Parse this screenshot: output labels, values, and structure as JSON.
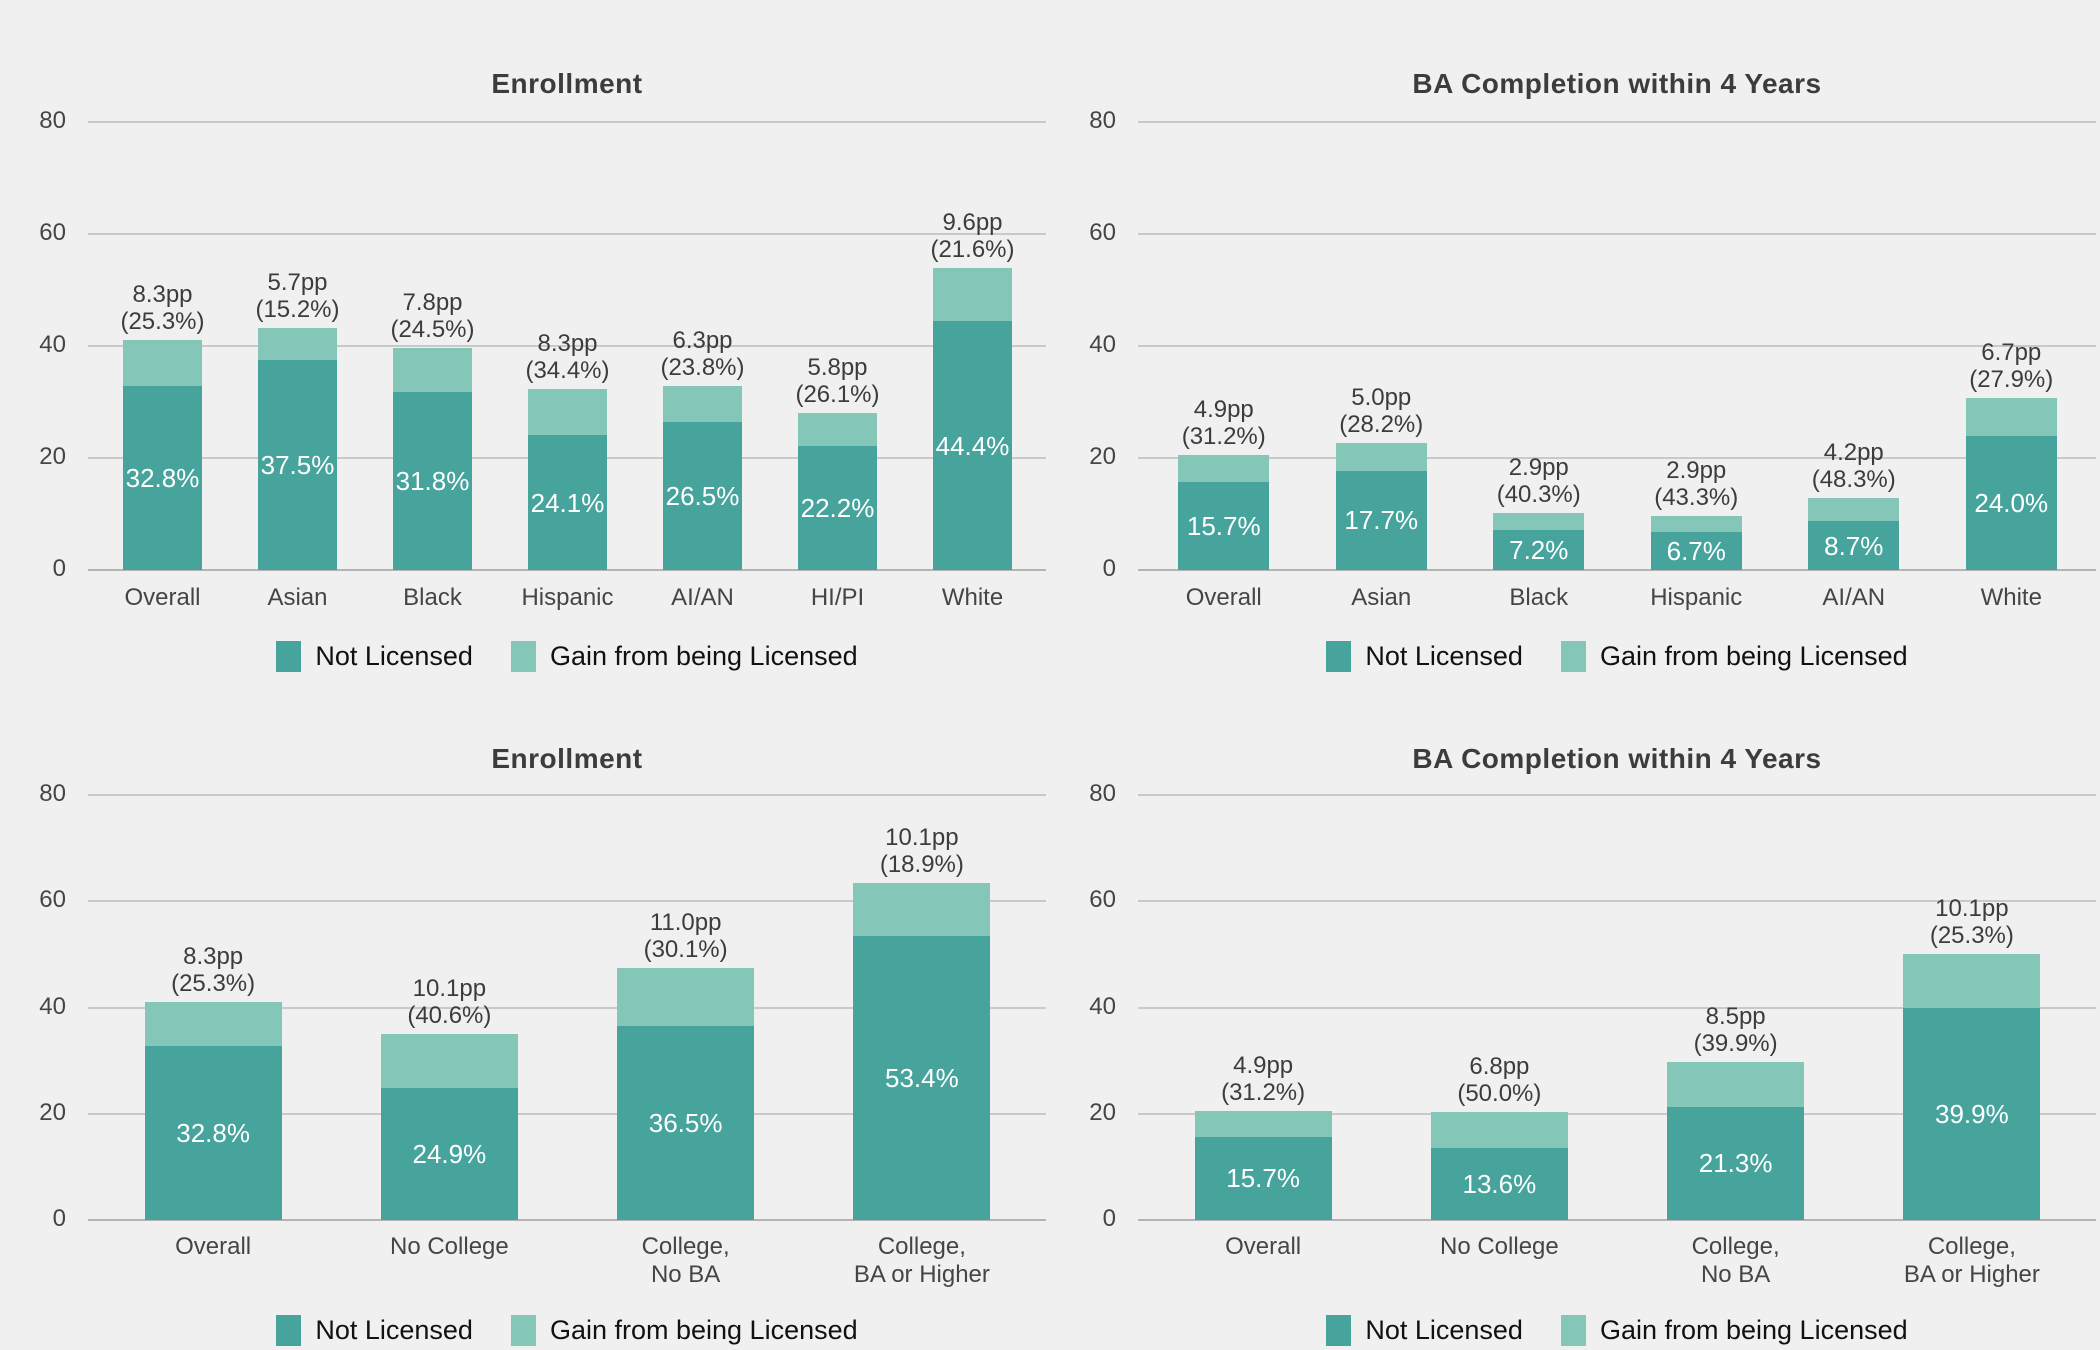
{
  "colors": {
    "background": "#f0f0f0",
    "not_licensed": "#46a49d",
    "gain_licensed": "#84c6b7",
    "gridline": "#c9c9c9",
    "zero_line": "#b4b4b4",
    "title_text": "#3c3c3c",
    "axis_text": "#454545",
    "bar_value_text": "#ffffff"
  },
  "legend": {
    "not_licensed_label": "Not Licensed",
    "gain_label": "Gain from being Licensed"
  },
  "chart_data": [
    {
      "type": "bar",
      "stacked": true,
      "title": "Enrollment",
      "group_dimension": "race-ethnicity",
      "categories": [
        [
          "Overall"
        ],
        [
          "Asian"
        ],
        [
          "Black"
        ],
        [
          "Hispanic"
        ],
        [
          "AI/AN"
        ],
        [
          "HI/PI"
        ],
        [
          "White"
        ]
      ],
      "series": [
        {
          "name": "Not Licensed",
          "values": [
            32.8,
            37.5,
            31.8,
            24.1,
            26.5,
            22.2,
            44.4
          ]
        },
        {
          "name": "Gain from being Licensed",
          "values": [
            8.3,
            5.7,
            7.8,
            8.3,
            6.3,
            5.8,
            9.6
          ]
        }
      ],
      "bar_inner_labels": [
        "32.8%",
        "37.5%",
        "31.8%",
        "24.1%",
        "26.5%",
        "22.2%",
        "44.4%"
      ],
      "bar_top_labels": [
        [
          "8.3pp",
          "(25.3%)"
        ],
        [
          "5.7pp",
          "(15.2%)"
        ],
        [
          "7.8pp",
          "(24.5%)"
        ],
        [
          "8.3pp",
          "(34.4%)"
        ],
        [
          "6.3pp",
          "(23.8%)"
        ],
        [
          "5.8pp",
          "(26.1%)"
        ],
        [
          "9.6pp",
          "(21.6%)"
        ]
      ],
      "xlabel": "",
      "ylabel": "",
      "ylim": [
        0,
        80
      ],
      "yticks": [
        0,
        20,
        40,
        60,
        80
      ],
      "grid": true,
      "legend_position": "bottom"
    },
    {
      "type": "bar",
      "stacked": true,
      "title": "BA Completion within 4 Years",
      "group_dimension": "race-ethnicity",
      "categories": [
        [
          "Overall"
        ],
        [
          "Asian"
        ],
        [
          "Black"
        ],
        [
          "Hispanic"
        ],
        [
          "AI/AN"
        ],
        [
          "White"
        ]
      ],
      "series": [
        {
          "name": "Not Licensed",
          "values": [
            15.7,
            17.7,
            7.2,
            6.7,
            8.7,
            24.0
          ]
        },
        {
          "name": "Gain from being Licensed",
          "values": [
            4.9,
            5.0,
            2.9,
            2.9,
            4.2,
            6.7
          ]
        }
      ],
      "bar_inner_labels": [
        "15.7%",
        "17.7%",
        "7.2%",
        "6.7%",
        "8.7%",
        "24.0%"
      ],
      "bar_top_labels": [
        [
          "4.9pp",
          "(31.2%)"
        ],
        [
          "5.0pp",
          "(28.2%)"
        ],
        [
          "2.9pp",
          "(40.3%)"
        ],
        [
          "2.9pp",
          "(43.3%)"
        ],
        [
          "4.2pp",
          "(48.3%)"
        ],
        [
          "6.7pp",
          "(27.9%)"
        ]
      ],
      "xlabel": "",
      "ylabel": "",
      "ylim": [
        0,
        80
      ],
      "yticks": [
        0,
        20,
        40,
        60,
        80
      ],
      "grid": true,
      "legend_position": "bottom"
    },
    {
      "type": "bar",
      "stacked": true,
      "title": "Enrollment",
      "group_dimension": "parental-education",
      "categories": [
        [
          "Overall"
        ],
        [
          "No College"
        ],
        [
          "College,",
          "No BA"
        ],
        [
          "College,",
          "BA or Higher"
        ]
      ],
      "series": [
        {
          "name": "Not Licensed",
          "values": [
            32.8,
            24.9,
            36.5,
            53.4
          ]
        },
        {
          "name": "Gain from being Licensed",
          "values": [
            8.3,
            10.1,
            11.0,
            10.1
          ]
        }
      ],
      "bar_inner_labels": [
        "32.8%",
        "24.9%",
        "36.5%",
        "53.4%"
      ],
      "bar_top_labels": [
        [
          "8.3pp",
          "(25.3%)"
        ],
        [
          "10.1pp",
          "(40.6%)"
        ],
        [
          "11.0pp",
          "(30.1%)"
        ],
        [
          "10.1pp",
          "(18.9%)"
        ]
      ],
      "xlabel": "",
      "ylabel": "",
      "ylim": [
        0,
        80
      ],
      "yticks": [
        0,
        20,
        40,
        60,
        80
      ],
      "grid": true,
      "legend_position": "bottom"
    },
    {
      "type": "bar",
      "stacked": true,
      "title": "BA Completion within 4 Years",
      "group_dimension": "parental-education",
      "categories": [
        [
          "Overall"
        ],
        [
          "No College"
        ],
        [
          "College,",
          "No BA"
        ],
        [
          "College,",
          "BA or Higher"
        ]
      ],
      "series": [
        {
          "name": "Not Licensed",
          "values": [
            15.7,
            13.6,
            21.3,
            39.9
          ]
        },
        {
          "name": "Gain from being Licensed",
          "values": [
            4.9,
            6.8,
            8.5,
            10.1
          ]
        }
      ],
      "bar_inner_labels": [
        "15.7%",
        "13.6%",
        "21.3%",
        "39.9%"
      ],
      "bar_top_labels": [
        [
          "4.9pp",
          "(31.2%)"
        ],
        [
          "6.8pp",
          "(50.0%)"
        ],
        [
          "8.5pp",
          "(39.9%)"
        ],
        [
          "10.1pp",
          "(25.3%)"
        ]
      ],
      "xlabel": "",
      "ylabel": "",
      "ylim": [
        0,
        80
      ],
      "yticks": [
        0,
        20,
        40,
        60,
        80
      ],
      "grid": true,
      "legend_position": "bottom"
    }
  ]
}
